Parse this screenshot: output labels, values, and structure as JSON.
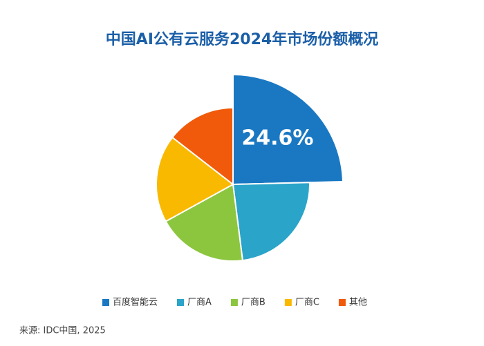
{
  "chart_data": {
    "type": "pie",
    "title": "中国AI公有云服务2024年市场份额概况",
    "categories": [
      "百度智能云",
      "厂商A",
      "厂商B",
      "厂商C",
      "其他"
    ],
    "values": [
      24.6,
      23.4,
      19,
      18.5,
      14.5
    ],
    "value_labels": [
      "24.6%",
      null,
      null,
      null,
      null
    ],
    "colors": [
      "#1a78c2",
      "#2aa4c8",
      "#8cc63f",
      "#f9b900",
      "#f05a0a"
    ],
    "explode": [
      true,
      false,
      false,
      false,
      false
    ],
    "legend": "bottom",
    "source": "来源: IDC中国, 2025"
  }
}
